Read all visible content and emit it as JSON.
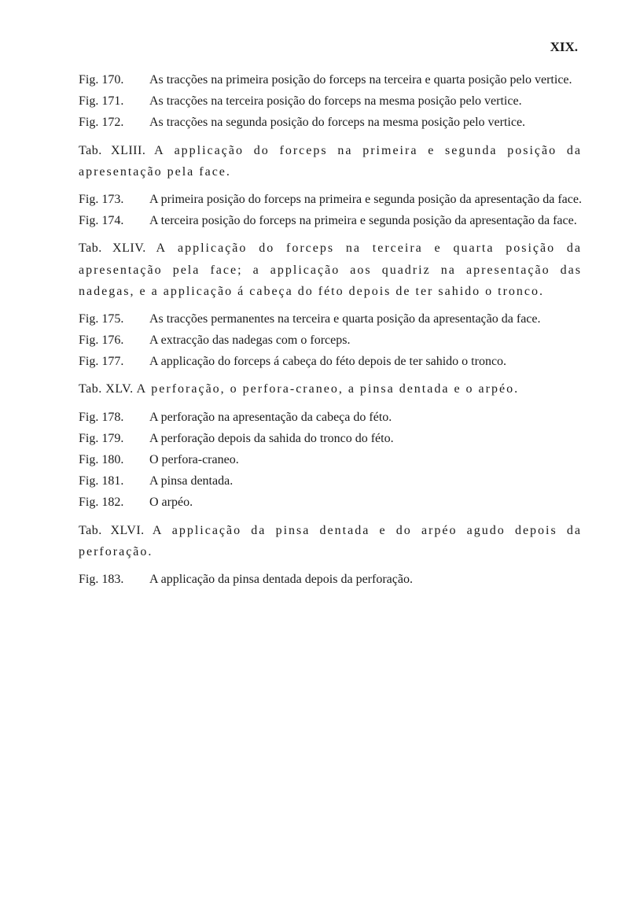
{
  "pageNumber": "XIX.",
  "entries": [
    {
      "type": "fig",
      "label": "Fig. 170.",
      "text": "As tracções na primeira posição do forceps na terceira e quarta posição pelo vertice."
    },
    {
      "type": "fig",
      "label": "Fig. 171.",
      "text": "As tracções na terceira posição do forceps na mesma posição pelo vertice."
    },
    {
      "type": "fig",
      "label": "Fig. 172.",
      "text": "As tracções na segunda posição do forceps na mesma posição pelo vertice."
    },
    {
      "type": "tab",
      "label": "Tab. XLIII.",
      "text": "A applicação do forceps na primeira e segunda posição da apresentação pela face."
    },
    {
      "type": "fig",
      "label": "Fig. 173.",
      "text": "A primeira posição do forceps na primeira e segunda posição da apresentação da face."
    },
    {
      "type": "fig",
      "label": "Fig. 174.",
      "text": "A terceira posição do forceps na primeira e segunda posição da apresentação da face."
    },
    {
      "type": "tab",
      "label": "Tab. XLIV.",
      "text": "A applicação do forceps na terceira e quarta posição da apresentação pela face; a applicação aos quadriz na apresentação das nadegas, e a applicação á cabeça do féto depois de ter sahido o tronco."
    },
    {
      "type": "fig",
      "label": "Fig. 175.",
      "text": "As tracções permanentes na terceira e quarta posição da apresentação da face."
    },
    {
      "type": "fig",
      "label": "Fig. 176.",
      "text": "A extracção das nadegas com o forceps."
    },
    {
      "type": "fig",
      "label": "Fig. 177.",
      "text": "A applicação do forceps á cabeça do féto depois de ter sahido o tronco."
    },
    {
      "type": "tab",
      "label": "Tab. XLV.",
      "text": "A perforação, o perfora-craneo, a pinsa dentada e o arpéo."
    },
    {
      "type": "fig",
      "label": "Fig. 178.",
      "text": "A perforação na apresentação da cabeça do féto."
    },
    {
      "type": "fig",
      "label": "Fig. 179.",
      "text": "A perforação depois da sahida do tronco do féto."
    },
    {
      "type": "fig",
      "label": "Fig. 180.",
      "text": "O perfora-craneo."
    },
    {
      "type": "fig",
      "label": "Fig. 181.",
      "text": "A pinsa dentada."
    },
    {
      "type": "fig",
      "label": "Fig. 182.",
      "text": "O arpéo."
    },
    {
      "type": "tab",
      "label": "Tab. XLVI.",
      "text": "A applicação da pinsa dentada e do arpéo agudo depois da perforação."
    },
    {
      "type": "fig",
      "label": "Fig. 183.",
      "text": "A applicação da pinsa dentada depois da perforação."
    }
  ]
}
